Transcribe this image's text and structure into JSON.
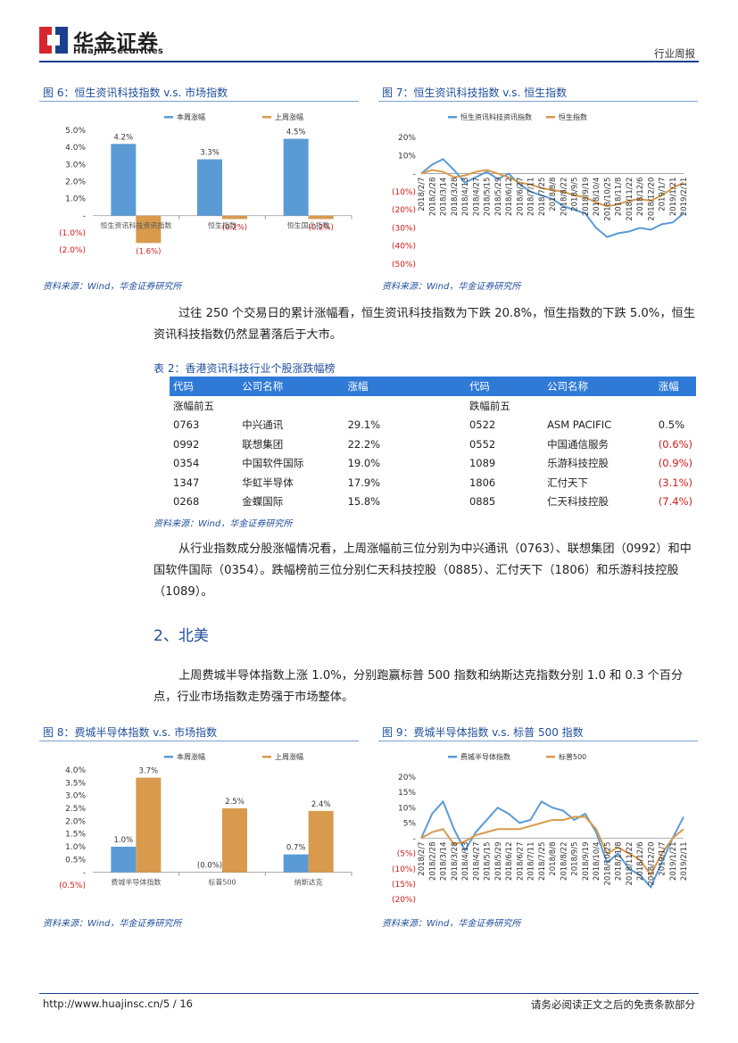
{
  "header": {
    "logo_cn": "华金证券",
    "logo_en": "Huajin Securities",
    "report_type": "行业周报"
  },
  "fig6": {
    "title": "图 6：恒生资讯科技指数 v.s. 市场指数",
    "source": "资料来源：Wind，华金证券研究所",
    "legend": [
      "本周涨幅",
      "上周涨幅"
    ],
    "colors": [
      "#5b9bd5",
      "#d99a4e"
    ],
    "chart_data": {
      "type": "bar",
      "categories": [
        "恒生资讯科技资讯指数",
        "恒生指数",
        "恒生国企指数"
      ],
      "series": [
        {
          "name": "本周涨幅",
          "values": [
            4.2,
            3.3,
            4.5
          ]
        },
        {
          "name": "上周涨幅",
          "values": [
            -1.6,
            -0.2,
            -0.2
          ]
        }
      ],
      "labels": [
        [
          "4.2%",
          "3.3%",
          "4.5%"
        ],
        [
          "(1.6%)",
          "(0.2%)",
          "(0.2%)"
        ]
      ],
      "yticks": [
        "5.0%",
        "4.0%",
        "3.0%",
        "2.0%",
        "1.0%",
        "-",
        "(1.0%)",
        "(2.0%)"
      ],
      "ylim": [
        -2,
        5
      ]
    }
  },
  "fig7": {
    "title": "图 7：恒生资讯科技指数 v.s. 恒生指数",
    "source": "资料来源：Wind，华金证券研究所",
    "legend": [
      "恒生资讯科技资讯指数",
      "恒生指数"
    ],
    "colors": [
      "#5b9bd5",
      "#d99a4e"
    ],
    "chart_data": {
      "type": "line",
      "yticks": [
        "20%",
        "10%",
        "-",
        "(10%)",
        "(20%)",
        "(30%)",
        "(40%)",
        "(50%)"
      ],
      "ylim": [
        -50,
        20
      ],
      "xticks": [
        "2018/2/7",
        "2018/2/28",
        "2018/3/14",
        "2018/3/28",
        "2018/4/13",
        "2018/4/27",
        "2018/5/15",
        "2018/5/29",
        "2018/6/12",
        "2018/6/27",
        "2018/7/11",
        "2018/7/25",
        "2018/8/8",
        "2018/8/22",
        "2018/9/5",
        "2018/9/19",
        "2018/10/4",
        "2018/10/25",
        "2018/11/8",
        "2018/11/22",
        "2018/12/6",
        "2018/12/20",
        "2019/1/7",
        "2019/1/21",
        "2019/2/11"
      ],
      "series": [
        {
          "name": "恒生资讯科技资讯指数",
          "values": [
            0,
            5,
            8,
            2,
            -5,
            -2,
            1,
            -3,
            0,
            -6,
            -10,
            -12,
            -14,
            -18,
            -20,
            -22,
            -30,
            -35,
            -33,
            -32,
            -30,
            -31,
            -28,
            -27,
            -22
          ]
        },
        {
          "name": "恒生指数",
          "values": [
            0,
            2,
            1,
            -2,
            -1,
            1,
            2,
            0,
            -2,
            -5,
            -6,
            -8,
            -9,
            -10,
            -12,
            -13,
            -16,
            -18,
            -17,
            -15,
            -14,
            -15,
            -12,
            -8,
            -5
          ]
        }
      ]
    }
  },
  "para1": "过往 250 个交易日的累计涨幅看，恒生资讯科技指数为下跌 20.8%，恒生指数的下跌 5.0%，恒生资讯科技指数仍然显著落后于大市。",
  "table2": {
    "title": "表 2：香港资讯科技行业个股涨跌幅榜",
    "headers": [
      "代码",
      "公司名称",
      "涨幅",
      "代码",
      "公司名称",
      "涨幅"
    ],
    "gain_label": "涨幅前五",
    "loss_label": "跌幅前五",
    "rows": [
      [
        "0763",
        "中兴通讯",
        "29.1%",
        "0522",
        "ASM PACIFIC",
        "0.5%"
      ],
      [
        "0992",
        "联想集团",
        "22.2%",
        "0552",
        "中国通信服务",
        "(0.6%)"
      ],
      [
        "0354",
        "中国软件国际",
        "19.0%",
        "1089",
        "乐游科技控股",
        "(0.9%)"
      ],
      [
        "1347",
        "华虹半导体",
        "17.9%",
        "1806",
        "汇付天下",
        "(3.1%)"
      ],
      [
        "0268",
        "金蝶国际",
        "15.8%",
        "0885",
        "仁天科技控股",
        "(7.4%)"
      ]
    ],
    "source": "资料来源：Wind，华金证券研究所"
  },
  "para2": "从行业指数成分股涨幅情况看，上周涨幅前三位分别为中兴通讯（0763）、联想集团（0992）和中国软件国际（0354）。跌幅榜前三位分别仁天科技控股（0885）、汇付天下（1806）和乐游科技控股（1089）。",
  "section2": "2、北美",
  "para3": "上周费城半导体指数上涨 1.0%，分别跑赢标普 500 指数和纳斯达克指数分别 1.0 和 0.3 个百分点，行业市场指数走势强于市场整体。",
  "fig8": {
    "title": "图 8：费城半导体指数 v.s. 市场指数",
    "source": "资料来源：Wind，华金证券研究所",
    "legend": [
      "本周涨幅",
      "上周涨幅"
    ],
    "colors": [
      "#5b9bd5",
      "#d99a4e"
    ],
    "chart_data": {
      "type": "bar",
      "categories": [
        "费城半导体指数",
        "标普500",
        "纳斯达克"
      ],
      "series": [
        {
          "name": "本周涨幅",
          "values": [
            1.0,
            0.0,
            0.7
          ]
        },
        {
          "name": "上周涨幅",
          "values": [
            3.7,
            2.5,
            2.4
          ]
        }
      ],
      "labels": [
        [
          "1.0%",
          "(0.0%)",
          "0.7%"
        ],
        [
          "3.7%",
          "2.5%",
          "2.4%"
        ]
      ],
      "yticks": [
        "4.0%",
        "3.5%",
        "3.0%",
        "2.5%",
        "2.0%",
        "1.5%",
        "1.0%",
        "0.5%",
        "-",
        "(0.5%)"
      ],
      "ylim": [
        -0.5,
        4
      ]
    }
  },
  "fig9": {
    "title": "图 9：费城半导体指数 v.s. 标普 500 指数",
    "source": "资料来源：Wind，华金证券研究所",
    "legend": [
      "费城半导体指数",
      "标普500"
    ],
    "colors": [
      "#5b9bd5",
      "#d99a4e"
    ],
    "chart_data": {
      "type": "line",
      "yticks": [
        "20%",
        "15%",
        "10%",
        "5%",
        "-",
        "(5%)",
        "(10%)",
        "(15%)",
        "(20%)"
      ],
      "ylim": [
        -20,
        20
      ],
      "xticks": [
        "2018/2/7",
        "2018/2/28",
        "2018/3/14",
        "2018/3/28",
        "2018/4/13",
        "2018/4/27",
        "2018/5/15",
        "2018/5/29",
        "2018/6/12",
        "2018/6/27",
        "2018/7/11",
        "2018/7/25",
        "2018/8/8",
        "2018/8/22",
        "2018/9/5",
        "2018/9/19",
        "2018/10/4",
        "2018/10/25",
        "2018/11/8",
        "2018/11/22",
        "2018/12/6",
        "2018/12/20",
        "2019/1/7",
        "2019/1/21",
        "2019/2/11"
      ],
      "series": [
        {
          "name": "费城半导体指数",
          "values": [
            0,
            8,
            12,
            3,
            -4,
            2,
            6,
            10,
            8,
            5,
            6,
            12,
            10,
            9,
            6,
            8,
            2,
            -8,
            -5,
            -10,
            -12,
            -16,
            -8,
            0,
            7
          ]
        },
        {
          "name": "标普500",
          "values": [
            0,
            2,
            3,
            -2,
            -1,
            1,
            2,
            3,
            3,
            3,
            4,
            5,
            6,
            6,
            7,
            7,
            3,
            -5,
            -3,
            -5,
            -7,
            -12,
            -5,
            0,
            3
          ]
        }
      ]
    }
  },
  "footer": {
    "url": "http://www.huajinsc.cn/",
    "page": "5 / 16",
    "disclaimer": "请务必阅读正文之后的免责条款部分"
  }
}
